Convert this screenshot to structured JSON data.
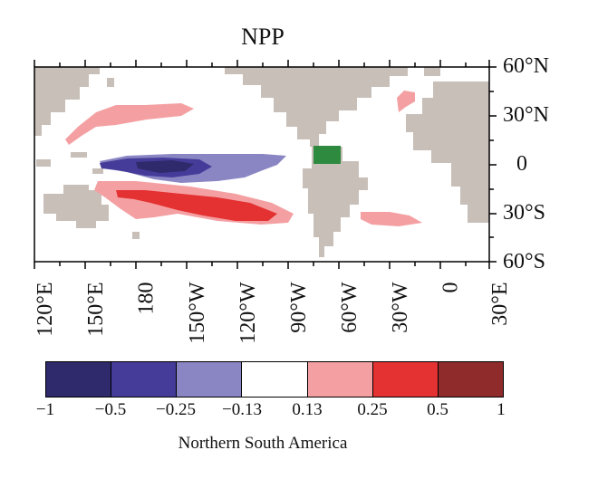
{
  "title": "NPP",
  "lat_labels": [
    "60°N",
    "30°N",
    "0",
    "30°S",
    "60°S"
  ],
  "lon_labels": [
    "120°E",
    "150°E",
    "180",
    "150°W",
    "120°W",
    "90°W",
    "60°W",
    "30°W",
    "0",
    "30°E"
  ],
  "colorbar": {
    "ticks": [
      "−1",
      "−0.5",
      "−0.25",
      "−0.13",
      "0.13",
      "0.25",
      "0.5",
      "1"
    ],
    "colors": [
      "#2e2a6b",
      "#453c99",
      "#8a86c4",
      "#ffffff",
      "#f4a0a3",
      "#e43131",
      "#8f2b2b"
    ]
  },
  "colors": {
    "land": "#c8bfb8",
    "region_marker": "#2d8a3e"
  },
  "caption": "Northern South America"
}
